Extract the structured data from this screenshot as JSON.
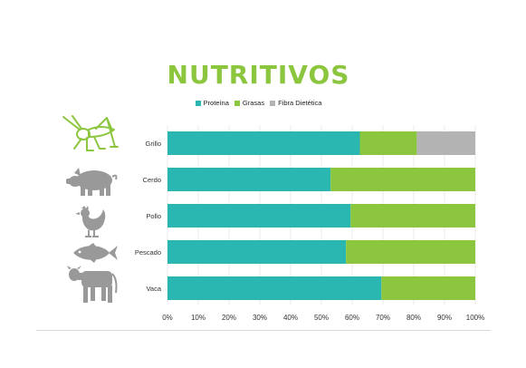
{
  "colors": {
    "proteina": "#2ab7b2",
    "grasas": "#8cc63f",
    "fibra": "#b3b3b3",
    "title": "#8cc63f",
    "icon_green": "#8cc63f",
    "icon_gray": "#999999"
  },
  "icons": [
    "cricket-icon",
    "pig-icon",
    "chicken-icon",
    "fish-icon",
    "cow-icon"
  ],
  "chart_data": {
    "type": "bar",
    "orientation": "horizontal",
    "stacked": true,
    "title": "NUTRITIVOS",
    "legend_position": "top",
    "categories": [
      "Grillo",
      "Cerdo",
      "Pollo",
      "Pescado",
      "Vaca"
    ],
    "series": [
      {
        "name": "Proteína",
        "values": [
          62.5,
          53,
          59.5,
          58,
          69.5
        ]
      },
      {
        "name": "Grasas",
        "values": [
          18.5,
          47,
          40.5,
          42,
          30.5
        ]
      },
      {
        "name": "Fibra Dietética",
        "values": [
          19,
          0,
          0,
          0,
          0
        ]
      }
    ],
    "xlim": [
      0,
      100
    ],
    "x_ticks": [
      "0%",
      "10%",
      "20%",
      "30%",
      "40%",
      "50%",
      "60%",
      "70%",
      "80%",
      "90%",
      "100%"
    ],
    "grid": true,
    "xlabel": "",
    "ylabel": ""
  }
}
